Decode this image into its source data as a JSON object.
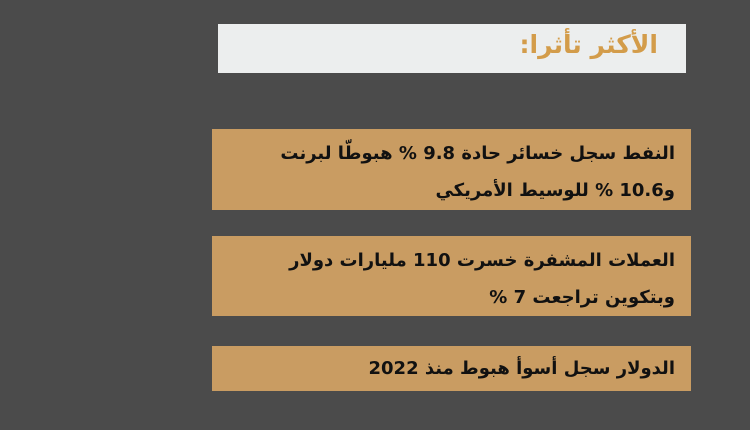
{
  "header": {
    "title": "الأكثر تأثرا:"
  },
  "colors": {
    "background": "#4b4b4b",
    "title_box": "#eceeee",
    "title_text": "#d39c4a",
    "card": "#c99c62"
  },
  "items": [
    {
      "lines": [
        "النفط سجل خسائر حادة 9.8 % هبوطّا لبرنت",
        "و10.6 % للوسيط الأمريكي"
      ]
    },
    {
      "lines": [
        "العملات المشفرة خسرت 110 مليارات دولار",
        "وبتكوين تراجعت 7 %"
      ]
    },
    {
      "lines": [
        "الدولار سجل أسوأ هبوط منذ 2022"
      ]
    }
  ]
}
